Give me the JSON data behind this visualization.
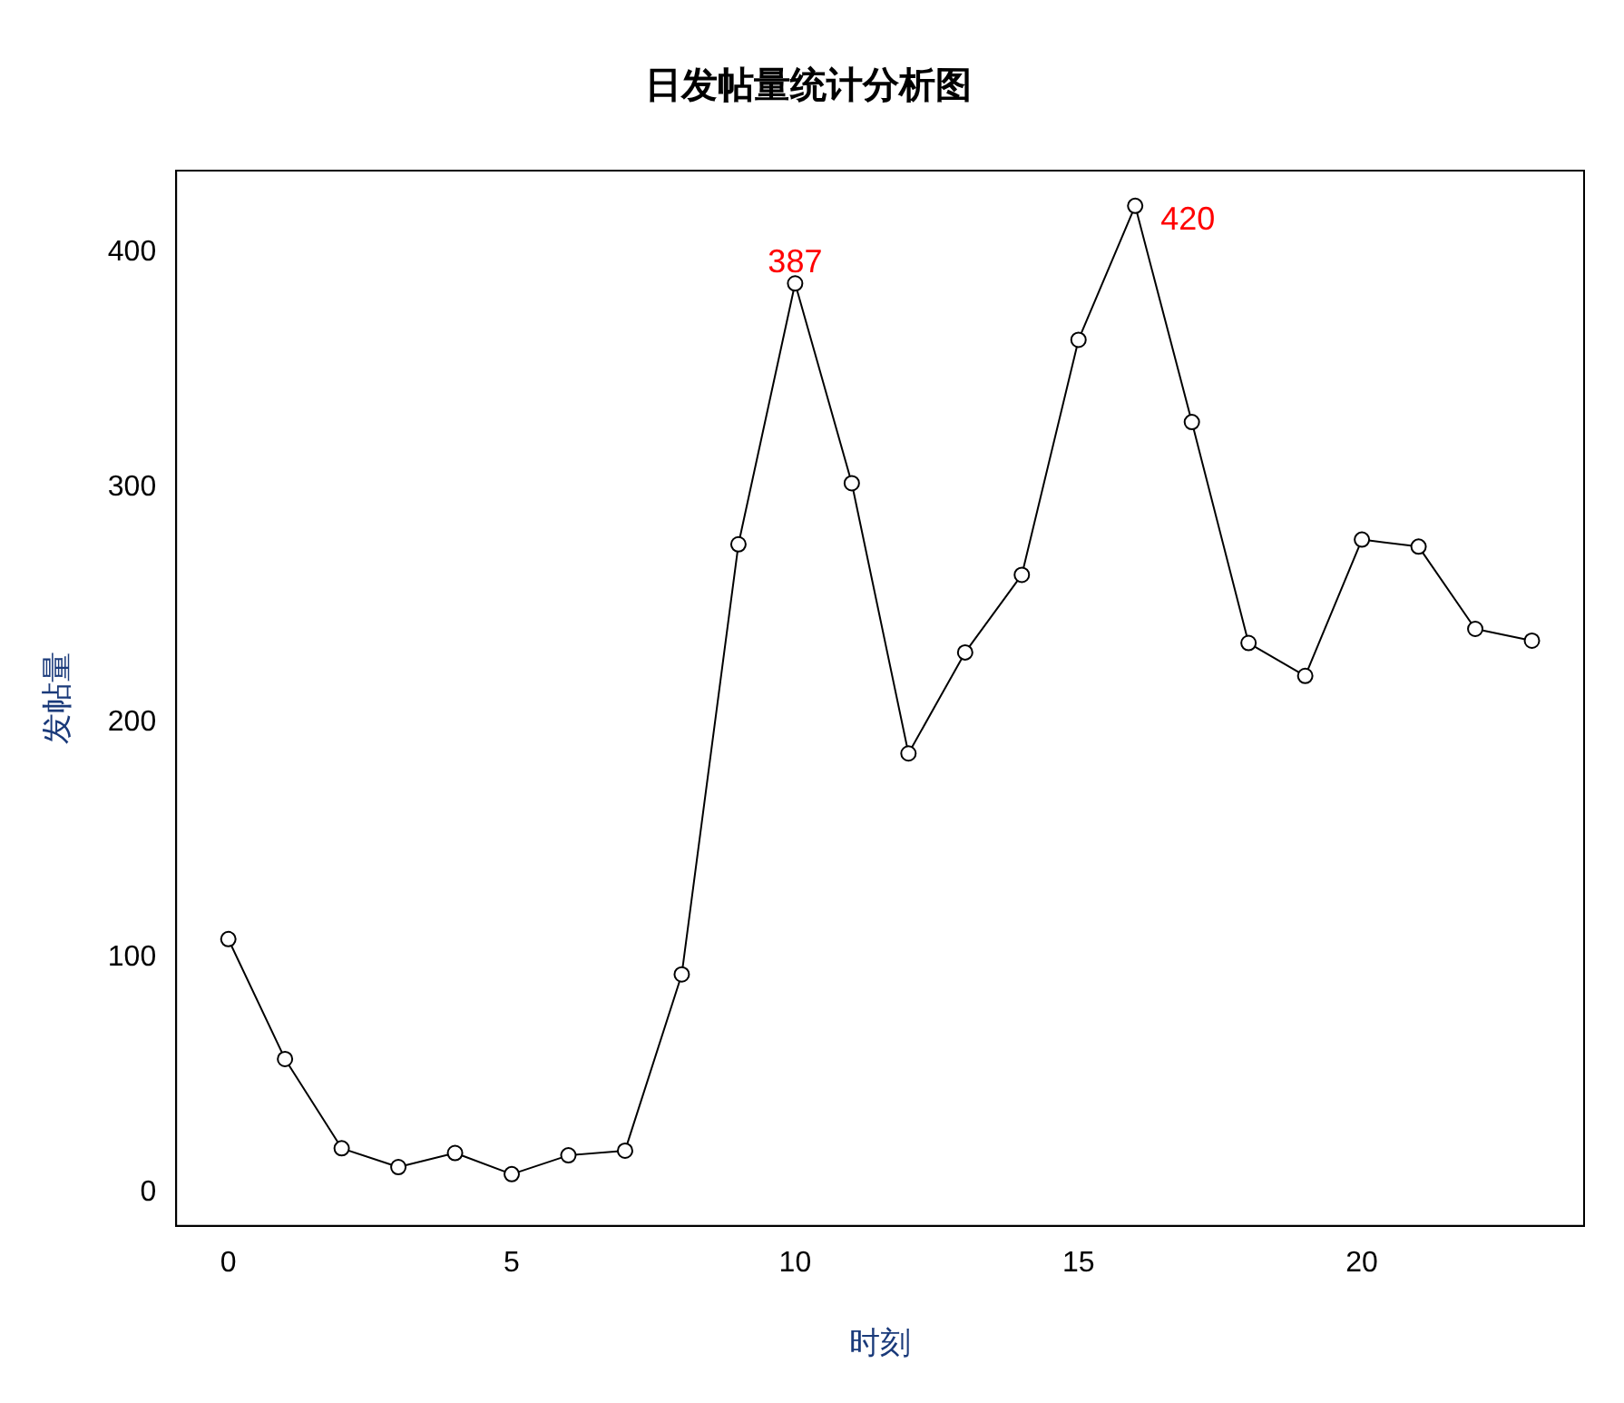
{
  "chart_data": {
    "type": "line",
    "title": "日发帖量统计分析图",
    "xlabel": "时刻",
    "ylabel": "发帖量",
    "x": [
      0,
      1,
      2,
      3,
      4,
      5,
      6,
      7,
      8,
      9,
      10,
      11,
      12,
      13,
      14,
      15,
      16,
      17,
      18,
      19,
      20,
      21,
      22,
      23
    ],
    "series": [
      {
        "color": "#000000",
        "values": [
          108,
          57,
          19,
          11,
          17,
          8,
          16,
          18,
          93,
          276,
          387,
          302,
          187,
          230,
          263,
          363,
          420,
          328,
          234,
          220,
          278,
          275,
          240,
          235
        ],
        "value_labels": [
          null,
          null,
          null,
          null,
          null,
          null,
          null,
          null,
          null,
          null,
          "387",
          null,
          null,
          null,
          null,
          null,
          "420",
          null,
          null,
          null,
          null,
          null,
          null,
          null
        ]
      }
    ],
    "xlim": [
      -0.92,
      23.92
    ],
    "xticks": [
      0,
      5,
      10,
      15,
      20
    ],
    "ylim": [
      -14,
      435
    ],
    "yticks": [
      0,
      100,
      200,
      300,
      400
    ],
    "grid": false,
    "legend": false,
    "marker": "circle",
    "line_style": "solid"
  }
}
